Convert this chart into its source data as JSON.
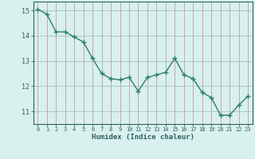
{
  "x": [
    0,
    1,
    2,
    3,
    4,
    5,
    6,
    7,
    8,
    9,
    10,
    11,
    12,
    13,
    14,
    15,
    16,
    17,
    18,
    19,
    20,
    21,
    22,
    23
  ],
  "y": [
    15.05,
    14.85,
    14.15,
    14.15,
    13.95,
    13.75,
    13.1,
    12.5,
    12.3,
    12.25,
    12.35,
    11.8,
    12.35,
    12.45,
    12.55,
    13.1,
    12.45,
    12.3,
    11.75,
    11.55,
    10.85,
    10.85,
    11.25,
    11.6
  ],
  "line_color": "#2e7d6e",
  "marker": "+",
  "marker_size": 4,
  "bg_color": "#d8f0ee",
  "vgrid_color": "#c8a8a8",
  "hgrid_color": "#a8c8c4",
  "xlabel": "Humidex (Indice chaleur)",
  "xlabel_color": "#2e6060",
  "tick_color": "#2e6060",
  "axis_color": "#2e6060",
  "ylim": [
    10.5,
    15.35
  ],
  "xlim": [
    -0.5,
    23.5
  ],
  "yticks": [
    11,
    12,
    13,
    14,
    15
  ],
  "xticks": [
    0,
    1,
    2,
    3,
    4,
    5,
    6,
    7,
    8,
    9,
    10,
    11,
    12,
    13,
    14,
    15,
    16,
    17,
    18,
    19,
    20,
    21,
    22,
    23
  ]
}
